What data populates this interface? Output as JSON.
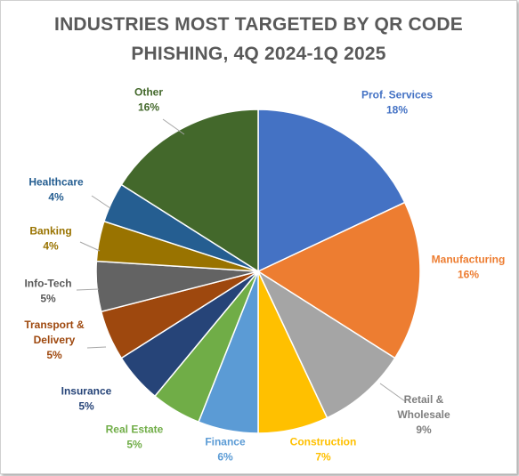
{
  "chart_data": {
    "type": "pie",
    "title_lines": [
      "INDUSTRIES MOST TARGETED BY QR CODE",
      "PHISHING, 4Q 2024-1Q 2025"
    ],
    "slices": [
      {
        "label": [
          "Prof. Services"
        ],
        "pct": "18%",
        "value": 18,
        "color": "#4472C4"
      },
      {
        "label": [
          "Manufacturing"
        ],
        "pct": "16%",
        "value": 16,
        "color": "#ED7D31"
      },
      {
        "label": [
          "Retail &",
          "Wholesale"
        ],
        "pct": "9%",
        "value": 9,
        "color": "#A5A5A5"
      },
      {
        "label": [
          "Construction"
        ],
        "pct": "7%",
        "value": 7,
        "color": "#FFC000"
      },
      {
        "label": [
          "Finance"
        ],
        "pct": "6%",
        "value": 6,
        "color": "#5B9BD5"
      },
      {
        "label": [
          "Real Estate"
        ],
        "pct": "5%",
        "value": 5,
        "color": "#70AD47"
      },
      {
        "label": [
          "Insurance"
        ],
        "pct": "5%",
        "value": 5,
        "color": "#264478"
      },
      {
        "label": [
          "Transport &",
          "Delivery"
        ],
        "pct": "5%",
        "value": 5,
        "color": "#9E480E"
      },
      {
        "label": [
          "Info-Tech"
        ],
        "pct": "5%",
        "value": 5,
        "color": "#636363"
      },
      {
        "label": [
          "Banking"
        ],
        "pct": "4%",
        "value": 4,
        "color": "#997300"
      },
      {
        "label": [
          "Healthcare"
        ],
        "pct": "4%",
        "value": 4,
        "color": "#255E91"
      },
      {
        "label": [
          "Other"
        ],
        "pct": "16%",
        "value": 16,
        "color": "#43682B"
      }
    ],
    "label_colors": [
      "#4472C4",
      "#ED7D31",
      "#7F7F7F",
      "#FFC000",
      "#5B9BD5",
      "#70AD47",
      "#264478",
      "#9E480E",
      "#595959",
      "#997300",
      "#255E91",
      "#43682B"
    ],
    "legend": "none"
  }
}
